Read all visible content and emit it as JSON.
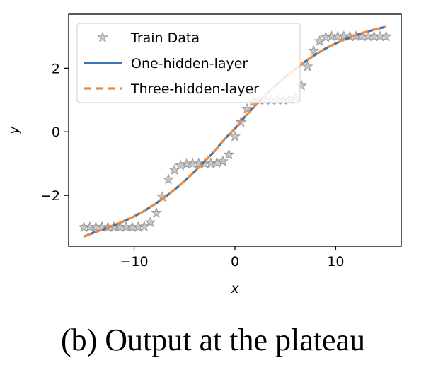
{
  "caption": "(b) Output at the plateau",
  "chart_data": {
    "type": "line",
    "xlabel": "x",
    "ylabel": "y",
    "xlim": [
      -16.5,
      16.5
    ],
    "ylim": [
      -3.6,
      3.7
    ],
    "xticks": [
      -10,
      0,
      10
    ],
    "xtick_labels": [
      "−10",
      "0",
      "10"
    ],
    "yticks": [
      -2,
      0,
      2
    ],
    "ytick_labels": [
      "−2",
      "0",
      "2"
    ],
    "grid": false,
    "legend_position": "top-left",
    "colors": {
      "train": "#999999",
      "one_hidden": "#3a74b4",
      "three_hidden": "#ef8a3c"
    },
    "series": [
      {
        "name": "Train Data",
        "kind": "scatter",
        "marker": "star",
        "x": [
          -15,
          -14.4,
          -13.8,
          -13.2,
          -12.6,
          -12,
          -11.4,
          -10.8,
          -10.2,
          -9.6,
          -9,
          -8.4,
          -7.8,
          -7.2,
          -6.6,
          -6,
          -5.4,
          -4.8,
          -4.2,
          -3.6,
          -3,
          -2.4,
          -1.8,
          -1.2,
          -0.6,
          0,
          0.6,
          1.2,
          1.8,
          2.4,
          3,
          3.6,
          4.2,
          4.8,
          5.4,
          6,
          6.6,
          7.2,
          7.8,
          8.4,
          9,
          9.6,
          10.2,
          10.8,
          11.4,
          12,
          12.6,
          13.2,
          13.8,
          14.4,
          15
        ],
        "y": [
          -3,
          -3,
          -3,
          -3,
          -3,
          -3,
          -3,
          -3,
          -3,
          -3,
          -2.98,
          -2.85,
          -2.55,
          -2.05,
          -1.5,
          -1.2,
          -1.06,
          -1.02,
          -1,
          -1,
          -1,
          -1,
          -0.98,
          -0.93,
          -0.72,
          -0.15,
          0.3,
          0.72,
          0.95,
          1,
          1,
          1,
          1,
          1,
          1.02,
          1.08,
          1.45,
          2.05,
          2.55,
          2.85,
          2.97,
          3,
          3,
          3,
          3,
          3,
          3,
          3,
          3,
          3,
          3
        ]
      },
      {
        "name": "One-hidden-layer",
        "kind": "line",
        "style": "solid",
        "x": [
          -15,
          -14,
          -13,
          -12,
          -11,
          -10,
          -9,
          -8,
          -7,
          -6,
          -5,
          -4,
          -3,
          -2,
          -1,
          0,
          1,
          2,
          3,
          4,
          5,
          6,
          7,
          8,
          9,
          10,
          11,
          12,
          13,
          14,
          15
        ],
        "y": [
          -3.3,
          -3.17,
          -3.06,
          -2.94,
          -2.81,
          -2.66,
          -2.49,
          -2.29,
          -2.07,
          -1.82,
          -1.55,
          -1.25,
          -0.93,
          -0.6,
          -0.22,
          0.1,
          0.48,
          0.82,
          1.15,
          1.45,
          1.72,
          1.98,
          2.22,
          2.43,
          2.62,
          2.78,
          2.92,
          3.04,
          3.14,
          3.23,
          3.3
        ]
      },
      {
        "name": "Three-hidden-layer",
        "kind": "line",
        "style": "dashed",
        "x": [
          -15,
          -14,
          -13,
          -12,
          -11,
          -10,
          -9,
          -8,
          -7,
          -6,
          -5,
          -4,
          -3,
          -2,
          -1,
          0,
          1,
          2,
          3,
          4,
          5,
          6,
          7,
          8,
          9,
          10,
          11,
          12,
          13,
          14,
          15
        ],
        "y": [
          -3.3,
          -3.17,
          -3.06,
          -2.94,
          -2.81,
          -2.66,
          -2.49,
          -2.29,
          -2.07,
          -1.82,
          -1.55,
          -1.25,
          -0.93,
          -0.6,
          -0.22,
          0.1,
          0.48,
          0.82,
          1.15,
          1.45,
          1.72,
          1.98,
          2.22,
          2.43,
          2.62,
          2.78,
          2.92,
          3.04,
          3.14,
          3.23,
          3.3
        ]
      }
    ]
  }
}
